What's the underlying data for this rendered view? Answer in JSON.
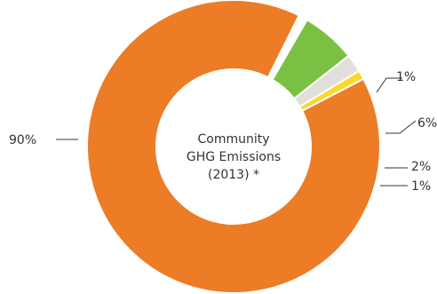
{
  "chart_data": {
    "type": "pie",
    "variant": "donut",
    "center_label": [
      "Community",
      "GHG Emissions",
      "(2013) *"
    ],
    "slices": [
      {
        "label": "1%",
        "value": 1,
        "color": "#ffffff"
      },
      {
        "label": "6%",
        "value": 6,
        "color": "#7ac143"
      },
      {
        "label": "2%",
        "value": 2,
        "color": "#e0dfdc"
      },
      {
        "label": "1%",
        "value": 1,
        "color": "#fdd72b"
      },
      {
        "label": "90%",
        "value": 90,
        "color": "#ec7c26"
      }
    ]
  }
}
